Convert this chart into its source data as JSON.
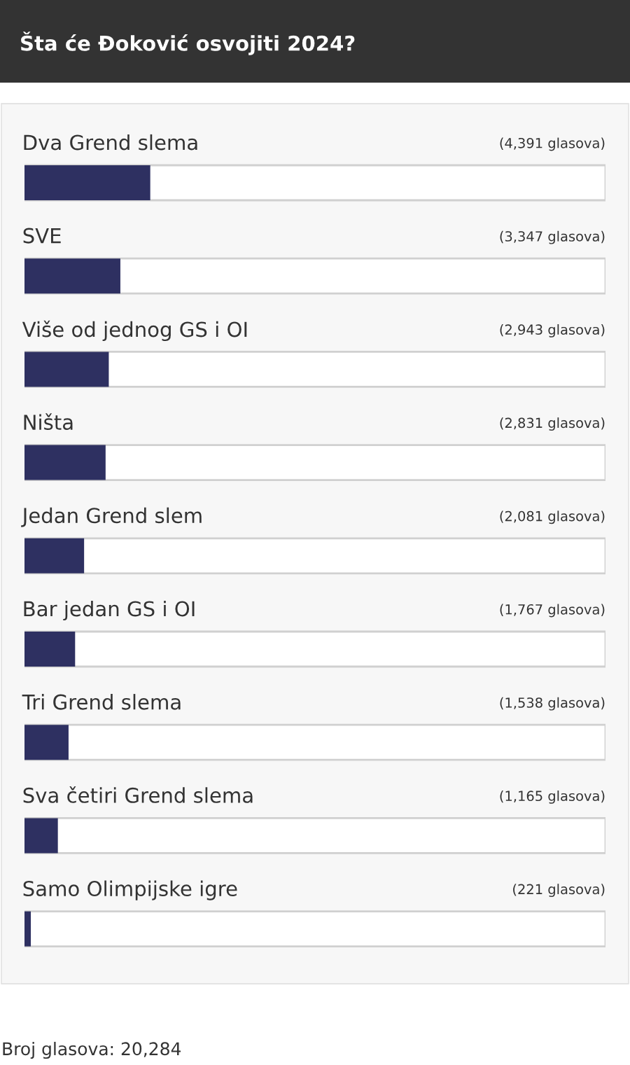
{
  "chart_data": {
    "type": "bar",
    "orientation": "horizontal",
    "title": "Šta će Đoković osvojiti 2024?",
    "categories": [
      "Dva Grend slema",
      "SVE",
      "Više od jednog GS i OI",
      "Ništa",
      "Jedan Grend slem",
      "Bar jedan GS i OI",
      "Tri Grend slema",
      "Sva četiri Grend slema",
      "Samo Olimpijske igre"
    ],
    "values": [
      4391,
      3347,
      2943,
      2831,
      2081,
      1767,
      1538,
      1165,
      221
    ],
    "value_labels": [
      "(4,391 glasova)",
      "(3,347 glasova)",
      "(2,943 glasova)",
      "(2,831 glasova)",
      "(2,081 glasova)",
      "(1,767 glasova)",
      "(1,538 glasova)",
      "(1,165 glasova)",
      "(221 glasova)"
    ],
    "color": "#2e3061",
    "xlim": [
      0,
      20284
    ],
    "tick_labels": false,
    "annotations": [
      "Broj glasova: 20,284"
    ]
  }
}
